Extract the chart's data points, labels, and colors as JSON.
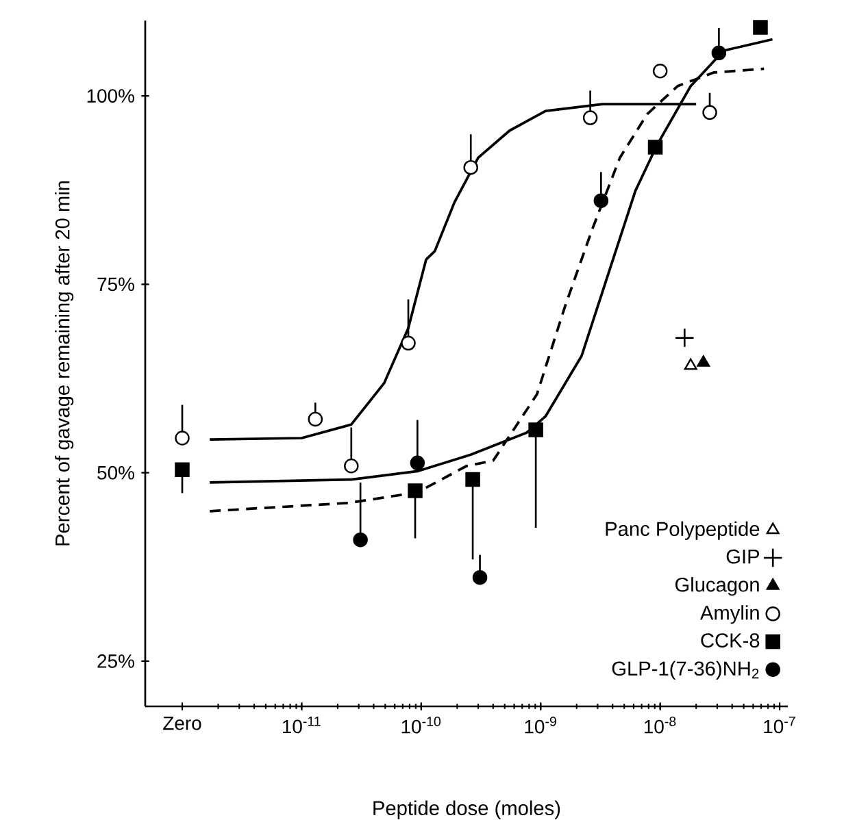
{
  "chart_data": {
    "type": "scatter",
    "xlabel": "Peptide dose (moles)",
    "ylabel": "Percent of gavage remaining after 20 min",
    "log": "x",
    "legend": "bottom right",
    "xlim": [
      4.9e-13,
      1.17e-07
    ],
    "ylim": [
      19,
      110
    ],
    "xticks": [
      {
        "value": 1e-12,
        "label": "Zero"
      },
      {
        "value": 1e-11,
        "label": "10$^{-11}$"
      },
      {
        "value": 1e-10,
        "label": "10$^{-10}$"
      },
      {
        "value": 1e-09,
        "label": "10$^{-9}$"
      },
      {
        "value": 1e-08,
        "label": "10$^{-8}$"
      },
      {
        "value": 1e-07,
        "label": "10$^{-7}$"
      }
    ],
    "yticks": [
      {
        "value": 25,
        "label": "25%"
      },
      {
        "value": 50,
        "label": "50%"
      },
      {
        "value": 75,
        "label": "75%"
      },
      {
        "value": 100,
        "label": "100%"
      }
    ],
    "series": [
      {
        "name": "Panc Polypeptide",
        "marker": "triangle",
        "color": "#ffffff",
        "x": [
          1.8e-08
        ],
        "values": [
          64.2
        ]
      },
      {
        "name": "GIP",
        "marker": "cross",
        "color": "#000000",
        "x": [
          1.6e-08
        ],
        "values": [
          67.9
        ]
      },
      {
        "name": "Glucagon",
        "marker": "triangle",
        "color": "#000000",
        "x": [
          2.3e-08
        ],
        "values": [
          64.6
        ]
      },
      {
        "name": "Amylin",
        "marker": "circle",
        "color": "#ffffff",
        "x": [
          1e-12,
          1.3e-11,
          2.6e-11,
          7.8e-11,
          2.6e-10,
          2.6e-09,
          1e-08,
          2.6e-08
        ],
        "values": [
          54.6,
          57.1,
          50.9,
          67.2,
          90.5,
          97.1,
          103.3,
          97.8
        ],
        "errors": [
          [
            54.6,
            59.0
          ],
          [
            57.1,
            59.3
          ],
          [
            50.9,
            56.0
          ],
          [
            67.2,
            73.0
          ],
          [
            90.5,
            94.9
          ],
          [
            97.1,
            100.7
          ],
          null,
          [
            97.8,
            100.4
          ]
        ]
      },
      {
        "name": "CCK-8",
        "marker": "square",
        "color": "#000000",
        "x": [
          1e-12,
          8.9e-11,
          2.7e-10,
          9.1e-10,
          9.1e-09,
          6.9e-08
        ],
        "values": [
          50.4,
          47.6,
          49.1,
          55.7,
          93.2,
          109.1
        ],
        "errors": [
          [
            47.3,
            50.4
          ],
          [
            41.3,
            47.6
          ],
          [
            38.5,
            49.1
          ],
          [
            42.7,
            55.7
          ],
          null,
          null
        ]
      },
      {
        "name": "GLP-1(7-36)NH$_{2}$",
        "marker": "circle",
        "color": "#000000",
        "x": [
          3.1e-11,
          9.3e-11,
          3.1e-10,
          3.2e-09,
          3.1e-08
        ],
        "values": [
          41.1,
          51.3,
          36.1,
          86.1,
          105.7
        ],
        "errors": [
          [
            41.1,
            48.7
          ],
          [
            51.3,
            57.0
          ],
          [
            36.1,
            39.1
          ],
          [
            86.1,
            89.9
          ],
          [
            105.7,
            109.0
          ]
        ]
      },
      {
        "type": "line",
        "line_style": "solid",
        "color": "#000000",
        "x": [
          1.7e-12,
          1e-11,
          2.6e-11,
          4.9e-11,
          7.8e-11,
          1.1e-10,
          1.3e-10,
          1.9e-10,
          3e-10,
          5.5e-10,
          1.1e-09,
          3.3e-09,
          2e-08
        ],
        "values": [
          54.4,
          54.6,
          56.4,
          61.9,
          69.2,
          78.3,
          79.4,
          85.9,
          91.8,
          95.4,
          98,
          98.9,
          98.9
        ]
      },
      {
        "type": "line",
        "line_style": "solid",
        "color": "#000000",
        "x": [
          1.7e-12,
          2.6e-11,
          9.3e-11,
          2.6e-10,
          7.6e-10,
          1.1e-09,
          2.2e-09,
          3.7e-09,
          6.2e-09,
          9.5e-09,
          1.8e-08,
          3.4e-08,
          8.7e-08
        ],
        "values": [
          48.7,
          49.1,
          50.2,
          52.4,
          55.3,
          57.5,
          65.5,
          76.5,
          87.4,
          93.6,
          101.3,
          106,
          107.5
        ]
      },
      {
        "type": "line",
        "line_style": "dashed",
        "color": "#000000",
        "x": [
          1.7e-12,
          2.5e-11,
          9.3e-11,
          2.4e-10,
          4e-10,
          9.3e-10,
          1.6e-09,
          2.7e-09,
          4.6e-09,
          7.8e-09,
          1.4e-08,
          2.8e-08,
          7.4e-08
        ],
        "values": [
          44.9,
          46,
          47.4,
          50.9,
          51.6,
          60.4,
          72.1,
          82.3,
          91.8,
          97.6,
          101.3,
          103.1,
          103.6
        ]
      }
    ]
  }
}
